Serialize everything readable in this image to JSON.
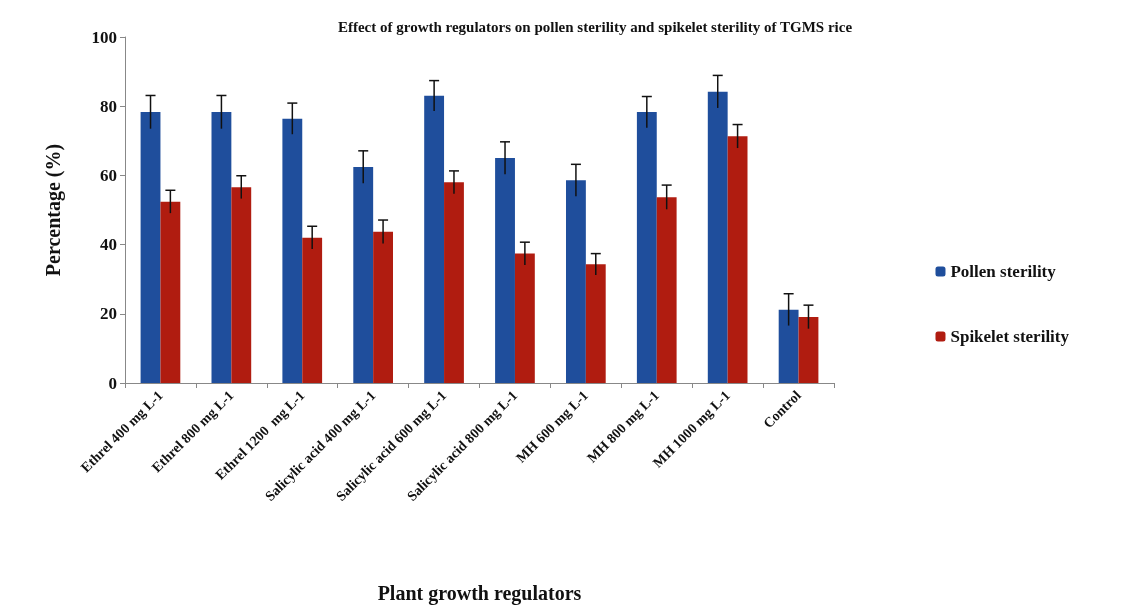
{
  "chart_data": {
    "type": "bar",
    "title": "Effect of growth regulators on pollen sterility and spikelet sterility of TGMS rice",
    "xlabel": "Plant growth regulators",
    "ylabel": "Percentage (%)",
    "categories": [
      "Ethrel 400 mg L-1",
      "Ethrel 800 mg L-1",
      "Ethrel 1200  mg L-1",
      "Salicylic acid 400 mg L-1",
      "Salicylic acid 600 mg L-1",
      "Salicylic acid 800 mg L-1",
      "MH 600 mg L-1",
      "MH 800 mg L-1",
      "MH 1000 mg L-1",
      "Control"
    ],
    "series": [
      {
        "name": "Pollen sterility",
        "color": "#1f4e9c",
        "values": [
          78.3,
          78.3,
          76.4,
          62.4,
          83,
          65,
          58.6,
          78.3,
          84.2,
          21.2
        ],
        "errors": [
          4.8,
          4.8,
          4.5,
          4.7,
          4.4,
          4.7,
          4.6,
          4.5,
          4.7,
          4.6
        ]
      },
      {
        "name": "Spikelet sterility",
        "color": "#b01c10",
        "values": [
          52.4,
          56.6,
          42,
          43.7,
          58,
          37.4,
          34.3,
          53.7,
          71.3,
          19.1
        ],
        "errors": [
          3.3,
          3.3,
          3.3,
          3.4,
          3.3,
          3.3,
          3.1,
          3.5,
          3.4,
          3.4
        ]
      }
    ],
    "ylim": [
      0,
      100
    ],
    "yticks": [
      0,
      20,
      40,
      60,
      80,
      100
    ],
    "grid": false,
    "legend": "right"
  }
}
